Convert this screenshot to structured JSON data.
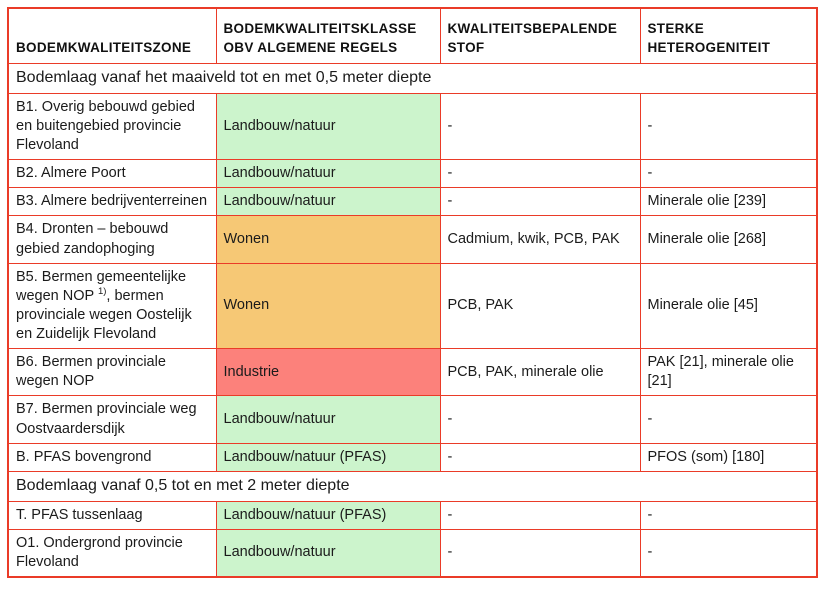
{
  "table": {
    "border_color": "#EA3B28",
    "text_color": "#1b1b1b",
    "columns": [
      "BODEMKWALITEITSZONE",
      "BODEMKWALITEITSKLASSE OBV ALGEMENE REGELS",
      "KWALITEITSBEPALENDE STOF",
      "STERKE HETEROGENITEIT"
    ],
    "class_colors": {
      "green": "#CCF4CC",
      "orange": "#F6C875",
      "red": "#FC817B",
      "none": "#FFFFFF"
    },
    "sections": [
      {
        "title": "Bodemlaag vanaf het maaiveld tot en met 0,5 meter diepte",
        "rows": [
          {
            "zone": "B1. Overig bebouwd gebied en buitengebied provincie Flevoland",
            "klasse": "Landbouw/natuur",
            "klasse_color": "green",
            "stof": "-",
            "heterogeniteit": "-"
          },
          {
            "zone": "B2. Almere Poort",
            "klasse": "Landbouw/natuur",
            "klasse_color": "green",
            "stof": "-",
            "heterogeniteit": "-"
          },
          {
            "zone": "B3. Almere bedrijventerreinen",
            "klasse": "Landbouw/natuur",
            "klasse_color": "green",
            "stof": "-",
            "heterogeniteit": "Minerale olie [239]"
          },
          {
            "zone": "B4. Dronten – bebouwd gebied zandophoging",
            "klasse": "Wonen",
            "klasse_color": "orange",
            "stof": "Cadmium, kwik, PCB, PAK",
            "heterogeniteit": "Minerale olie [268]"
          },
          {
            "zone": "B5. Bermen gemeentelijke wegen NOP ^{1)}, bermen provinciale wegen Oostelijk en Zuidelijk Flevoland",
            "klasse": "Wonen",
            "klasse_color": "orange",
            "stof": "PCB, PAK",
            "heterogeniteit": "Minerale olie [45]"
          },
          {
            "zone": "B6. Bermen provinciale wegen NOP",
            "klasse": "Industrie",
            "klasse_color": "red",
            "stof": "PCB, PAK, minerale olie",
            "heterogeniteit": "PAK [21], minerale olie [21]"
          },
          {
            "zone": "B7. Bermen provinciale weg Oostvaardersdijk",
            "klasse": "Landbouw/natuur",
            "klasse_color": "green",
            "stof": "-",
            "heterogeniteit": "-"
          },
          {
            "zone": "B. PFAS bovengrond",
            "klasse": "Landbouw/natuur (PFAS)",
            "klasse_color": "green",
            "stof": "-",
            "heterogeniteit": "PFOS (som) [180]"
          }
        ]
      },
      {
        "title": "Bodemlaag vanaf 0,5 tot en met 2 meter diepte",
        "rows": [
          {
            "zone": "T. PFAS tussenlaag",
            "klasse": "Landbouw/natuur (PFAS)",
            "klasse_color": "green",
            "stof": "-",
            "heterogeniteit": "-"
          },
          {
            "zone": "O1. Ondergrond provincie Flevoland",
            "klasse": "Landbouw/natuur",
            "klasse_color": "green",
            "stof": "-",
            "heterogeniteit": "-"
          }
        ]
      }
    ]
  }
}
